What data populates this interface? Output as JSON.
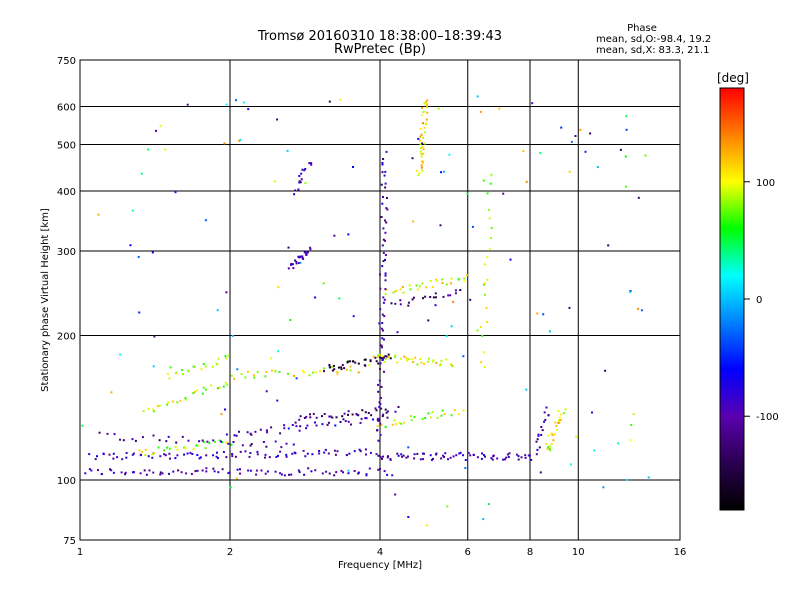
{
  "chart_data": {
    "type": "scatter",
    "title": "Tromsø 20160310 18:38:00–18:39:43",
    "subtitle": "RwPretec (Bp)",
    "xlabel": "Frequency [MHz]",
    "ylabel": "Stationary phase Virtual Height [km]",
    "x_scale": "log",
    "y_scale": "log",
    "xlim": [
      1,
      16
    ],
    "ylim": [
      75,
      750
    ],
    "x_ticks": [
      1,
      2,
      4,
      6,
      8,
      10,
      16
    ],
    "x_tick_labels": [
      "1",
      "2",
      "4",
      "6",
      "8",
      "10",
      "16"
    ],
    "y_ticks": [
      75,
      100,
      200,
      300,
      400,
      500,
      600,
      750
    ],
    "y_tick_labels": [
      "75",
      "100",
      "200",
      "300",
      "400",
      "500",
      "600",
      "750"
    ],
    "grid": true,
    "stats": {
      "heading": "Phase",
      "o_label": "mean, sd,O:",
      "o_values": "-98.4, 19.2",
      "x_label": "mean, sd,X:",
      "x_values": "83.3, 21.1"
    },
    "colorbar": {
      "label": "[deg]",
      "range": [
        -180,
        180
      ],
      "ticks": [
        100,
        0,
        -100
      ],
      "tick_labels": [
        "100",
        "0",
        "-100"
      ],
      "colormap": [
        "#000000",
        "#2a0050",
        "#5a00b0",
        "#0000ff",
        "#0080ff",
        "#00ffff",
        "#00ff00",
        "#ffff00",
        "#ff8000",
        "#ff0000"
      ]
    },
    "series": [
      {
        "x": [
          1.02,
          4.2
        ],
        "y": [
          104,
          104
        ],
        "phase": -100,
        "n": 80
      },
      {
        "x": [
          1.05,
          3.8
        ],
        "y": [
          112,
          114
        ],
        "phase": -90,
        "n": 80
      },
      {
        "x": [
          3.9,
          8.2
        ],
        "y": [
          112,
          112
        ],
        "phase": -100,
        "n": 70
      },
      {
        "x": [
          1.3,
          2.0
        ],
        "y": [
          114,
          120
        ],
        "phase": 90,
        "n": 25
      },
      {
        "x": [
          1.1,
          2.6
        ],
        "y": [
          124,
          118
        ],
        "phase": -110,
        "n": 30
      },
      {
        "x": [
          2.0,
          4.1
        ],
        "y": [
          124,
          135
        ],
        "phase": -100,
        "n": 40
      },
      {
        "x": [
          2.7,
          4.3
        ],
        "y": [
          134,
          140
        ],
        "phase": -120,
        "n": 35
      },
      {
        "x": [
          1.35,
          2.0
        ],
        "y": [
          138,
          160
        ],
        "phase": 90,
        "n": 25
      },
      {
        "x": [
          1.5,
          2.0
        ],
        "y": [
          165,
          180
        ],
        "phase": 80,
        "n": 20
      },
      {
        "x": [
          2.0,
          3.6
        ],
        "y": [
          165,
          170
        ],
        "phase": 100,
        "n": 30
      },
      {
        "x": [
          3.1,
          4.2
        ],
        "y": [
          170,
          180
        ],
        "phase": -150,
        "n": 35
      },
      {
        "x": [
          3.9,
          5.6
        ],
        "y": [
          180,
          175
        ],
        "phase": 100,
        "n": 35
      },
      {
        "x": [
          4.0,
          5.8
        ],
        "y": [
          130,
          140
        ],
        "phase": 90,
        "n": 25
      },
      {
        "x": [
          4.1,
          6.0
        ],
        "y": [
          245,
          265
        ],
        "phase": 100,
        "n": 30
      },
      {
        "x": [
          4.2,
          5.8
        ],
        "y": [
          230,
          250
        ],
        "phase": -120,
        "n": 20
      },
      {
        "x": [
          4.0,
          4.1
        ],
        "y": [
          120,
          480
        ],
        "phase": -100,
        "n": 70
      },
      {
        "x": [
          4.8,
          4.95
        ],
        "y": [
          430,
          620
        ],
        "phase": 110,
        "n": 40
      },
      {
        "x": [
          2.65,
          2.9
        ],
        "y": [
          280,
          300
        ],
        "phase": -100,
        "n": 25
      },
      {
        "x": [
          2.7,
          2.9
        ],
        "y": [
          400,
          460
        ],
        "phase": -100,
        "n": 15
      },
      {
        "x": [
          6.4,
          6.7
        ],
        "y": [
          170,
          430
        ],
        "phase": 90,
        "n": 20
      },
      {
        "x": [
          8.6,
          9.3
        ],
        "y": [
          115,
          140
        ],
        "phase": 100,
        "n": 25
      },
      {
        "x": [
          8.3,
          8.7
        ],
        "y": [
          115,
          140
        ],
        "phase": -100,
        "n": 15
      },
      {
        "x": [
          1.0,
          14.0
        ],
        "y": [
          80,
          650
        ],
        "phase": 0,
        "n": 140
      }
    ]
  }
}
